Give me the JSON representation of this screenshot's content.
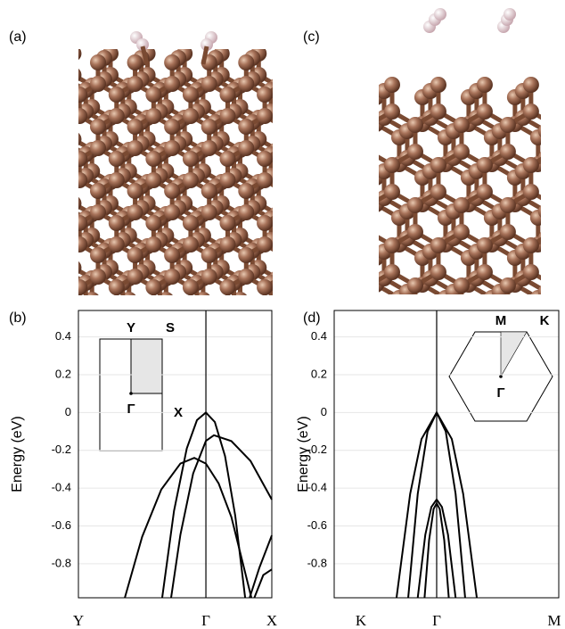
{
  "structures": [
    {
      "panel_label": "(a)"
    },
    {
      "panel_label": "(c)"
    }
  ],
  "chart_data": [
    {
      "type": "line",
      "panel_label": "(b)",
      "ylabel": "Energy (eV)",
      "xlim": [
        0,
        1.517
      ],
      "xticks": [
        {
          "value": 0,
          "label": "Y"
        },
        {
          "value": 1,
          "label": "Γ"
        },
        {
          "value": 1.517,
          "label": "X"
        }
      ],
      "ylim": [
        -0.98,
        0.54
      ],
      "yticks": [
        -0.8,
        -0.6,
        -0.4,
        -0.2,
        0,
        0.2,
        0.4
      ],
      "grid": true,
      "inset_labels": [
        "Y",
        "S",
        "Γ",
        "X"
      ],
      "series": [
        {
          "color": "#000000",
          "x": [
            0.657,
            0.75,
            0.85,
            0.93,
            1,
            1.07,
            1.15,
            1.23,
            1.308
          ],
          "values": [
            -0.98,
            -0.52,
            -0.19,
            -0.04,
            0,
            -0.05,
            -0.23,
            -0.545,
            -0.98
          ]
        },
        {
          "color": "#000000",
          "x": [
            0.727,
            0.8,
            0.9,
            1.0,
            1.063,
            1.2,
            1.35,
            1.517
          ],
          "values": [
            -0.98,
            -0.646,
            -0.322,
            -0.15,
            -0.12,
            -0.151,
            -0.256,
            -0.46
          ]
        },
        {
          "color": "#000000",
          "x": [
            0.364,
            0.5,
            0.65,
            0.8,
            0.909,
            1.0,
            1.1,
            1.2,
            1.357
          ],
          "values": [
            -0.98,
            -0.657,
            -0.407,
            -0.27,
            -0.24,
            -0.27,
            -0.375,
            -0.553,
            -0.98
          ]
        },
        {
          "color": "#000000",
          "x": [
            1.343,
            1.42,
            1.517
          ],
          "values": [
            -0.98,
            -0.82,
            -0.65
          ]
        },
        {
          "color": "#000000",
          "x": [
            1.38,
            1.45,
            1.517
          ],
          "values": [
            -0.98,
            -0.86,
            -0.83
          ]
        }
      ]
    },
    {
      "type": "line",
      "panel_label": "(d)",
      "ylabel": "Energy (eV)",
      "xlim": [
        -0.353,
        2.612
      ],
      "xticks": [
        {
          "value": 0,
          "label": "K"
        },
        {
          "value": 1,
          "label": "Γ"
        },
        {
          "value": 2.553,
          "label": "M"
        }
      ],
      "ylim": [
        -0.98,
        0.54
      ],
      "yticks": [
        -0.8,
        -0.6,
        -0.4,
        -0.2,
        0,
        0.2,
        0.4
      ],
      "grid": true,
      "inset_labels": [
        "M",
        "K",
        "Γ"
      ],
      "series": [
        {
          "color": "#000000",
          "x": [
            0.47,
            0.65,
            0.8,
            1,
            1.2,
            1.35,
            1.53
          ],
          "values": [
            -0.98,
            -0.43,
            -0.14,
            0,
            -0.14,
            -0.43,
            -0.98
          ]
        },
        {
          "color": "#000000",
          "x": [
            0.624,
            0.75,
            0.88,
            1,
            1.12,
            1.25,
            1.376
          ],
          "values": [
            -0.98,
            -0.43,
            -0.1,
            0,
            -0.1,
            -0.43,
            -0.98
          ]
        },
        {
          "color": "#000000",
          "x": [
            0.75,
            0.85,
            0.93,
            1,
            1.07,
            1.15,
            1.25
          ],
          "values": [
            -0.98,
            -0.647,
            -0.5,
            -0.46,
            -0.5,
            -0.647,
            -0.98
          ]
        },
        {
          "color": "#000000",
          "x": [
            0.84,
            0.9,
            0.96,
            1,
            1.04,
            1.1,
            1.16
          ],
          "values": [
            -0.98,
            -0.675,
            -0.51,
            -0.48,
            -0.51,
            -0.675,
            -0.98
          ]
        }
      ]
    }
  ]
}
